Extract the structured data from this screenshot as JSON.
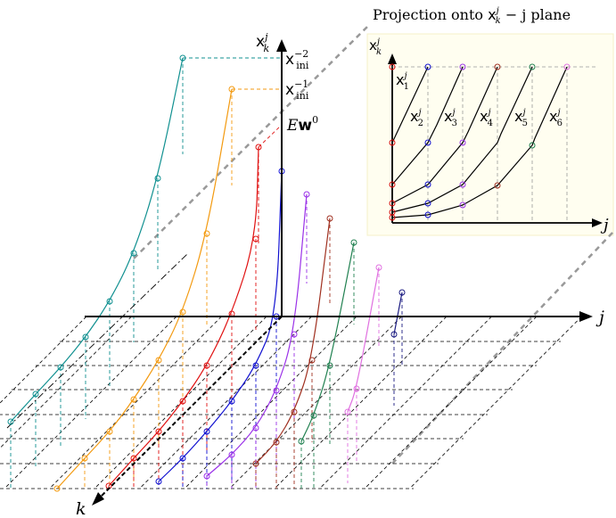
{
  "title": "Projection onto x_k^j − j plane",
  "title_parts": {
    "prefix": "Projection onto ",
    "var": "x",
    "var_sub": "k",
    "var_sup": "j",
    "suffix": " − j plane"
  },
  "axes": {
    "vertical": {
      "var": "x",
      "sub": "k",
      "sup": "j"
    },
    "j_axis": "j",
    "k_axis": "k"
  },
  "initial_labels": [
    {
      "var": "x",
      "sub": "ini",
      "sup": "−2"
    },
    {
      "var": "x",
      "sub": "ini",
      "sup": "−1"
    }
  ],
  "ew_label": {
    "prefix": "E",
    "bold": "w",
    "sup": "0"
  },
  "inset": {
    "vertical_axis": {
      "var": "x",
      "sub": "k",
      "sup": "j"
    },
    "horizontal_axis": "j",
    "curve_labels": [
      {
        "var": "x",
        "sub": "1",
        "sup": "j"
      },
      {
        "var": "x",
        "sub": "2",
        "sup": "j"
      },
      {
        "var": "x",
        "sub": "3",
        "sup": "j"
      },
      {
        "var": "x",
        "sub": "4",
        "sup": "j"
      },
      {
        "var": "x",
        "sub": "5",
        "sup": "j"
      },
      {
        "var": "x",
        "sub": "6",
        "sup": "j"
      }
    ]
  },
  "colors": {
    "teal": "#109090",
    "orange": "#f39a10",
    "red": "#e01010",
    "blue": "#1010d0",
    "purple": "#9a30e8",
    "brown": "#a03020",
    "green": "#208050",
    "violet": "#e070e0",
    "navy": "#1a1a80",
    "inset_bg": "#fffef0",
    "grid_dash": "#000000",
    "projection_dash": "#999999"
  }
}
